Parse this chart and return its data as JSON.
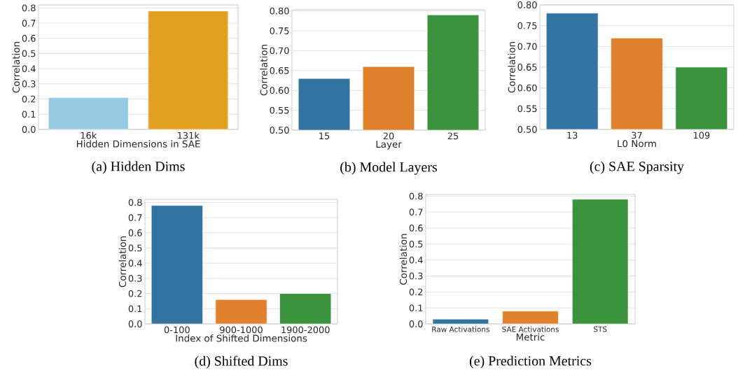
{
  "chart_data": [
    {
      "type": "bar",
      "title": "(a) Hidden Dims",
      "xlabel": "Hidden Dimensions in SAE",
      "ylabel": "Correlation",
      "categories": [
        "16k",
        "131k"
      ],
      "values": [
        0.21,
        0.78
      ],
      "colors": [
        "#95cae3",
        "#e3a020"
      ],
      "ylim": [
        0,
        0.82
      ],
      "yticks": [
        {
          "value": 0,
          "label": "0.0"
        },
        {
          "value": 0.1,
          "label": "0.1"
        },
        {
          "value": 0.2,
          "label": "0.2"
        },
        {
          "value": 0.3,
          "label": "0.3"
        },
        {
          "value": 0.4,
          "label": "0.4"
        },
        {
          "value": 0.5,
          "label": "0.5"
        },
        {
          "value": 0.6,
          "label": "0.6"
        },
        {
          "value": 0.7,
          "label": "0.7"
        },
        {
          "value": 0.8,
          "label": "0.8"
        }
      ],
      "grid": "y"
    },
    {
      "type": "bar",
      "title": "(b) Model Layers",
      "xlabel": "Layer",
      "ylabel": "Correlation",
      "categories": [
        "15",
        "20",
        "25"
      ],
      "values": [
        0.63,
        0.66,
        0.79
      ],
      "colors": [
        "#3274a1",
        "#e1812c",
        "#3a923a"
      ],
      "ylim": [
        0.5,
        0.803
      ],
      "yticks": [
        {
          "value": 0.5,
          "label": "0.50"
        },
        {
          "value": 0.55,
          "label": "0.55"
        },
        {
          "value": 0.6,
          "label": "0.60"
        },
        {
          "value": 0.65,
          "label": "0.65"
        },
        {
          "value": 0.7,
          "label": "0.70"
        },
        {
          "value": 0.75,
          "label": "0.75"
        },
        {
          "value": 0.8,
          "label": "0.80"
        }
      ],
      "grid": "y"
    },
    {
      "type": "bar",
      "title": "(c) SAE Sparsity",
      "xlabel": "L0 Norm",
      "ylabel": "Correlation",
      "categories": [
        "13",
        "37",
        "109"
      ],
      "values": [
        0.78,
        0.72,
        0.65
      ],
      "colors": [
        "#3274a1",
        "#e1812c",
        "#3a923a"
      ],
      "ylim": [
        0.5,
        0.8
      ],
      "yticks": [
        {
          "value": 0.5,
          "label": "0.50"
        },
        {
          "value": 0.55,
          "label": "0.55"
        },
        {
          "value": 0.6,
          "label": "0.60"
        },
        {
          "value": 0.65,
          "label": "0.65"
        },
        {
          "value": 0.7,
          "label": "0.70"
        },
        {
          "value": 0.75,
          "label": "0.75"
        },
        {
          "value": 0.8,
          "label": "0.80"
        }
      ],
      "grid": "y"
    },
    {
      "type": "bar",
      "title": "(d) Shifted Dims",
      "xlabel": "Index of Shifted Dimensions",
      "ylabel": "Correlation",
      "categories": [
        "0-100",
        "900-1000",
        "1900-2000"
      ],
      "values": [
        0.78,
        0.16,
        0.2
      ],
      "colors": [
        "#3274a1",
        "#e1812c",
        "#3a923a"
      ],
      "ylim": [
        0,
        0.82
      ],
      "yticks": [
        {
          "value": 0,
          "label": "0.0"
        },
        {
          "value": 0.1,
          "label": "0.1"
        },
        {
          "value": 0.2,
          "label": "0.2"
        },
        {
          "value": 0.3,
          "label": "0.3"
        },
        {
          "value": 0.4,
          "label": "0.4"
        },
        {
          "value": 0.5,
          "label": "0.5"
        },
        {
          "value": 0.6,
          "label": "0.6"
        },
        {
          "value": 0.7,
          "label": "0.7"
        },
        {
          "value": 0.8,
          "label": "0.8"
        }
      ],
      "grid": "y"
    },
    {
      "type": "bar",
      "title": "(e) Prediction Metrics",
      "xlabel": "Metric",
      "ylabel": "Correlation",
      "categories": [
        "Raw Activations",
        "SAE Activations",
        "STS"
      ],
      "values": [
        0.03,
        0.08,
        0.78
      ],
      "colors": [
        "#3274a1",
        "#e1812c",
        "#3a923a"
      ],
      "ylim": [
        0,
        0.81
      ],
      "yticks": [
        {
          "value": 0,
          "label": "0.0"
        },
        {
          "value": 0.1,
          "label": "0.1"
        },
        {
          "value": 0.2,
          "label": "0.2"
        },
        {
          "value": 0.3,
          "label": "0.3"
        },
        {
          "value": 0.4,
          "label": "0.4"
        },
        {
          "value": 0.5,
          "label": "0.5"
        },
        {
          "value": 0.6,
          "label": "0.6"
        },
        {
          "value": 0.7,
          "label": "0.7"
        },
        {
          "value": 0.8,
          "label": "0.8"
        }
      ],
      "grid": "y"
    }
  ]
}
